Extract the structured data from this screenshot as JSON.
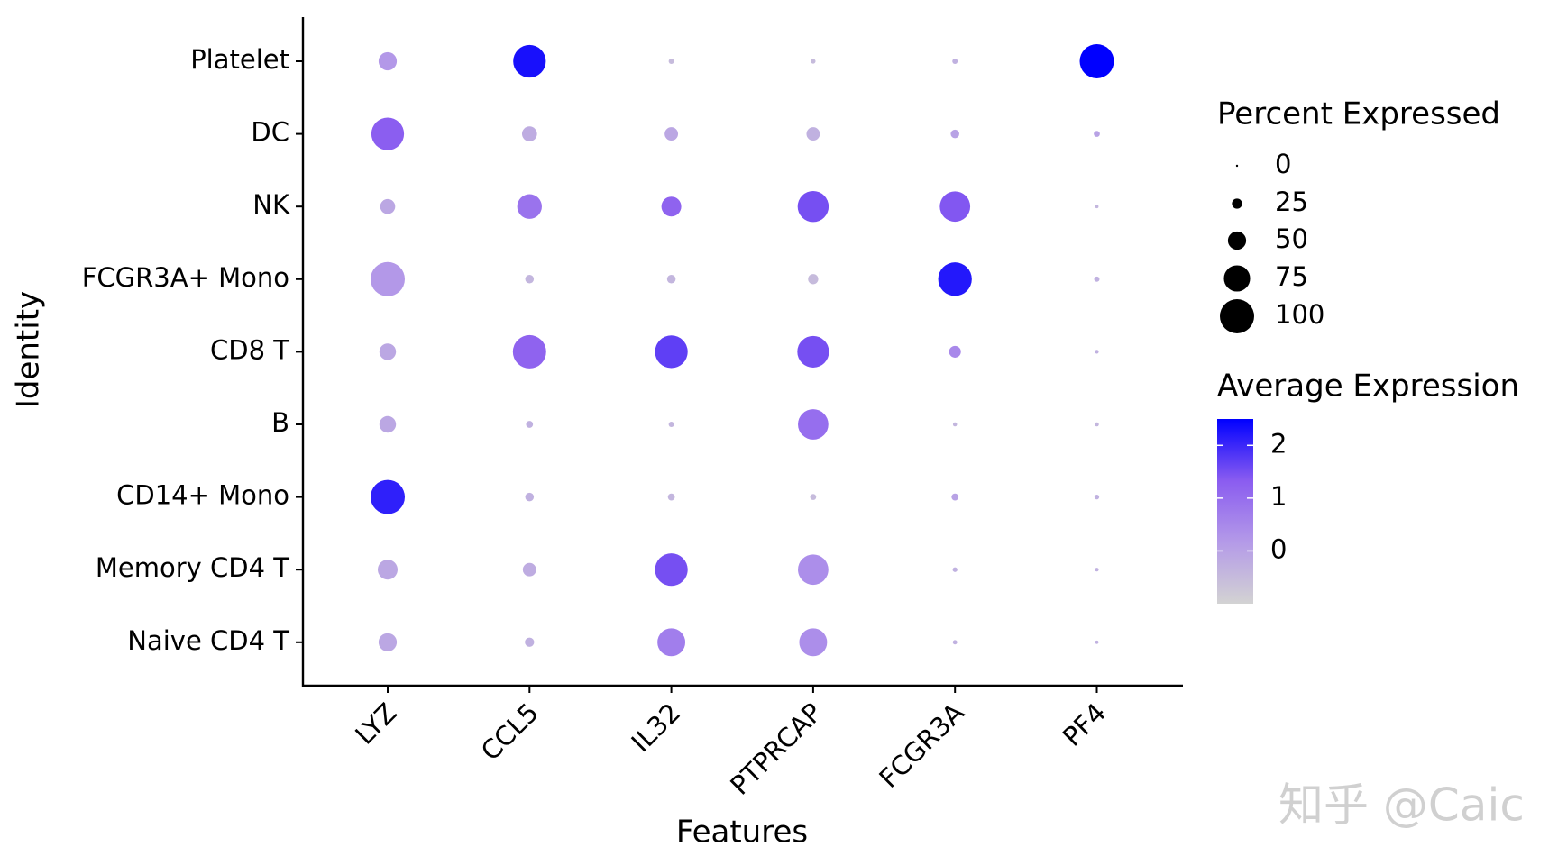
{
  "chart_data": {
    "type": "dot",
    "x_label": "Features",
    "y_label": "Identity",
    "categories": [
      "LYZ",
      "CCL5",
      "IL32",
      "PTPRCAP",
      "FCGR3A",
      "PF4"
    ],
    "series": [
      {
        "name": "Platelet",
        "values": [
          50,
          95,
          10,
          8,
          10,
          100
        ],
        "avg_expression": [
          0.2,
          2.3,
          -0.5,
          -0.5,
          -0.3,
          2.5
        ]
      },
      {
        "name": "DC",
        "values": [
          95,
          40,
          35,
          35,
          20,
          12
        ],
        "avg_expression": [
          1.3,
          -0.2,
          -0.1,
          -0.3,
          0.0,
          0.0
        ]
      },
      {
        "name": "NK",
        "values": [
          40,
          70,
          55,
          90,
          88,
          4
        ],
        "avg_expression": [
          -0.1,
          0.9,
          1.2,
          1.5,
          1.4,
          -0.4
        ]
      },
      {
        "name": "FCGR3A+ Mono",
        "values": [
          100,
          20,
          20,
          25,
          98,
          10
        ],
        "avg_expression": [
          0.2,
          -0.4,
          -0.4,
          -0.5,
          2.2,
          -0.3
        ]
      },
      {
        "name": "CD8 T",
        "values": [
          45,
          97,
          95,
          92,
          30,
          5
        ],
        "avg_expression": [
          -0.1,
          1.2,
          1.7,
          1.5,
          0.5,
          -0.3
        ]
      },
      {
        "name": "B",
        "values": [
          45,
          15,
          10,
          88,
          6,
          6
        ],
        "avg_expression": [
          -0.1,
          -0.3,
          -0.4,
          1.0,
          -0.4,
          -0.4
        ]
      },
      {
        "name": "CD14+ Mono",
        "values": [
          100,
          20,
          15,
          12,
          15,
          8
        ],
        "avg_expression": [
          2.1,
          -0.3,
          -0.4,
          -0.5,
          0.0,
          -0.3
        ]
      },
      {
        "name": "Memory CD4 T",
        "values": [
          55,
          35,
          95,
          88,
          8,
          5
        ],
        "avg_expression": [
          -0.1,
          -0.2,
          1.5,
          0.4,
          -0.3,
          -0.3
        ]
      },
      {
        "name": "Naive CD4 T",
        "values": [
          50,
          22,
          80,
          80,
          7,
          4
        ],
        "avg_expression": [
          -0.1,
          -0.3,
          0.7,
          0.4,
          -0.3,
          -0.3
        ]
      }
    ],
    "size_title": "Percent Expressed",
    "size_lim": [
      0,
      100
    ],
    "size_ticks": [
      0,
      25,
      50,
      75,
      100
    ],
    "color_title": "Average Expression",
    "clim": [
      -1,
      2.5
    ],
    "cticks": [
      0,
      1,
      2
    ],
    "colors": [
      "#d3d3d3",
      "#b49ae8",
      "#8a5cf0",
      "#0000ff"
    ],
    "watermark": "知乎 @Caic"
  }
}
